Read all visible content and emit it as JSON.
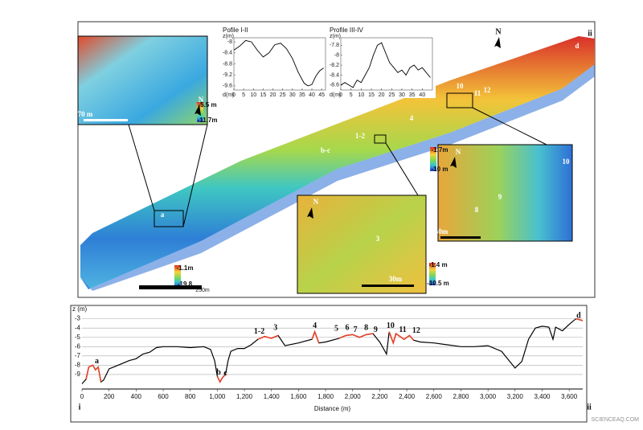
{
  "chart_data": [
    {
      "type": "line",
      "title": "Pofile I-II",
      "y_label": "z(m)",
      "x_label": "d(m)",
      "x": [
        0,
        3,
        6,
        9,
        12,
        15,
        18,
        21,
        24,
        27,
        30,
        33,
        36,
        38,
        40,
        42,
        44,
        46
      ],
      "series": [
        {
          "color": "#000000",
          "values": [
            -8.3,
            -8.15,
            -7.95,
            -8.0,
            -8.3,
            -8.55,
            -8.4,
            -8.1,
            -8.05,
            -8.25,
            -8.6,
            -9.1,
            -9.5,
            -9.6,
            -9.55,
            -9.25,
            -9.05,
            -8.95
          ]
        }
      ],
      "xlim": [
        0,
        47
      ],
      "xticks": [
        0,
        5,
        10,
        15,
        20,
        25,
        30,
        35,
        40,
        45
      ],
      "ylim": [
        -9.75,
        -7.85
      ],
      "yticks": [
        -8,
        -8.4,
        -8.8,
        -9.2,
        -9.6
      ]
    },
    {
      "type": "line",
      "title": "Profile III-IV",
      "y_label": "z(m)",
      "x_label": "d(m)",
      "x": [
        0,
        2,
        4,
        6,
        8,
        10,
        12,
        14,
        16,
        18,
        20,
        22,
        24,
        26,
        28,
        30,
        32,
        34,
        36,
        38,
        40,
        42,
        44
      ],
      "series": [
        {
          "color": "#000000",
          "values": [
            -8.6,
            -8.55,
            -8.6,
            -8.65,
            -8.5,
            -8.55,
            -8.4,
            -8.25,
            -8.0,
            -7.8,
            -7.75,
            -7.95,
            -8.15,
            -8.25,
            -8.35,
            -8.3,
            -8.4,
            -8.25,
            -8.2,
            -8.3,
            -8.25,
            -8.35,
            -8.45
          ]
        }
      ],
      "xlim": [
        0,
        45
      ],
      "xticks": [
        0,
        5,
        10,
        15,
        20,
        25,
        30,
        35,
        40
      ],
      "ylim": [
        -8.7,
        -7.65
      ],
      "yticks": [
        -7.8,
        -8,
        -8.2,
        -8.4,
        -8.6
      ]
    },
    {
      "type": "line",
      "y_label": "z (m)",
      "x_label": "Distance (m)",
      "start_label": "i",
      "end_label": "ii",
      "grid": true,
      "x": [
        0,
        30,
        50,
        80,
        100,
        120,
        140,
        160,
        200,
        250,
        300,
        350,
        400,
        450,
        500,
        550,
        600,
        700,
        800,
        900,
        950,
        980,
        1000,
        1020,
        1040,
        1060,
        1080,
        1100,
        1150,
        1200,
        1250,
        1300,
        1350,
        1400,
        1450,
        1500,
        1600,
        1700,
        1720,
        1750,
        1800,
        1900,
        1950,
        2000,
        2050,
        2100,
        2150,
        2200,
        2250,
        2270,
        2300,
        2320,
        2380,
        2420,
        2450,
        2500,
        2600,
        2700,
        2800,
        2900,
        3000,
        3100,
        3200,
        3250,
        3300,
        3350,
        3400,
        3450,
        3480,
        3500,
        3550,
        3600,
        3650,
        3700
      ],
      "series": [
        {
          "color": "#000000",
          "values": [
            -10,
            -9.5,
            -8.2,
            -8,
            -8.5,
            -8.2,
            -9.8,
            -9.6,
            -8.4,
            -8.1,
            -7.8,
            -7.5,
            -7.3,
            -6.8,
            -6.6,
            -6.1,
            -6,
            -6,
            -6.1,
            -6,
            -6.3,
            -7.5,
            -9.2,
            -9.8,
            -9.3,
            -9,
            -7.5,
            -6.5,
            -6.2,
            -6.2,
            -5.8,
            -5.2,
            -4.9,
            -5.1,
            -4.8,
            -5.9,
            -5.6,
            -5.2,
            -4.4,
            -5.6,
            -5.5,
            -5.1,
            -4.8,
            -4.7,
            -5,
            -4.7,
            -4.6,
            -5.5,
            -6.8,
            -4.4,
            -5.6,
            -4.6,
            -5.2,
            -4.8,
            -5.3,
            -5.5,
            -5.6,
            -5.8,
            -6,
            -6,
            -5.9,
            -6.5,
            -8.3,
            -7.6,
            -5.2,
            -4,
            -3.8,
            -3.9,
            -5.2,
            -3.9,
            -4.3,
            -3.6,
            -3,
            -3.2
          ]
        },
        {
          "color": "#e8432a",
          "values": [
            null,
            -9.5,
            -8.2,
            -8,
            -8.5,
            -8.2,
            -9.8,
            null,
            null,
            null,
            null,
            null,
            null,
            null,
            null,
            null,
            null,
            null,
            null,
            null,
            null,
            null,
            -9.2,
            -9.8,
            -9.3,
            -9,
            null,
            null,
            null,
            null,
            null,
            -5.2,
            -4.9,
            -5.1,
            -4.8,
            null,
            null,
            -5.2,
            -4.4,
            -5.6,
            null,
            -5.1,
            -4.8,
            -4.7,
            -5,
            -4.7,
            -4.6,
            null,
            null,
            -4.4,
            -5.6,
            -4.6,
            -5.2,
            -4.8,
            -5.3,
            null,
            null,
            null,
            null,
            null,
            null,
            null,
            null,
            null,
            null,
            null,
            null,
            null,
            null,
            null,
            null,
            null,
            -3,
            -3.2
          ]
        }
      ],
      "annotations": [
        {
          "text": "a",
          "x": 110,
          "y": -7.6
        },
        {
          "text": "b",
          "x": 1010,
          "y": -8.8
        },
        {
          "text": "c",
          "x": 1060,
          "y": -8.9
        },
        {
          "text": "1-2",
          "x": 1310,
          "y": -4.4
        },
        {
          "text": "3",
          "x": 1430,
          "y": -4.0
        },
        {
          "text": "4",
          "x": 1720,
          "y": -3.8
        },
        {
          "text": "5",
          "x": 1880,
          "y": -4.1
        },
        {
          "text": "6",
          "x": 1960,
          "y": -4.0
        },
        {
          "text": "7",
          "x": 2020,
          "y": -4.2
        },
        {
          "text": "8",
          "x": 2100,
          "y": -4.0
        },
        {
          "text": "9",
          "x": 2170,
          "y": -4.2
        },
        {
          "text": "10",
          "x": 2280,
          "y": -3.8
        },
        {
          "text": "11",
          "x": 2370,
          "y": -4.2
        },
        {
          "text": "12",
          "x": 2470,
          "y": -4.3
        },
        {
          "text": "d",
          "x": 3670,
          "y": -2.7
        }
      ],
      "xlim": [
        0,
        3700
      ],
      "xticks": [
        0,
        200,
        400,
        600,
        800,
        {
          "value": 1000,
          "label": "1,000"
        },
        {
          "value": 1200,
          "label": "1,200"
        },
        {
          "value": 1400,
          "label": "1,400"
        },
        {
          "value": 1600,
          "label": "1,600"
        },
        {
          "value": 1800,
          "label": "1,800"
        },
        {
          "value": 2000,
          "label": "2,000"
        },
        {
          "value": 2200,
          "label": "2,200"
        },
        {
          "value": 2400,
          "label": "2,400"
        },
        {
          "value": 2600,
          "label": "2,600"
        },
        {
          "value": 2800,
          "label": "2,800"
        },
        {
          "value": 3000,
          "label": "3,000"
        },
        {
          "value": 3200,
          "label": "3,200"
        },
        {
          "value": 3400,
          "label": "3,400"
        },
        {
          "value": 3600,
          "label": "3,600"
        }
      ],
      "ylim": [
        -10.3,
        -2.6
      ],
      "yticks": [
        -3,
        -4,
        -5,
        -6,
        -7,
        -8,
        -9
      ]
    }
  ],
  "map": {
    "labels": [
      "ii",
      "N",
      "N",
      "N",
      "N",
      "-5.5 m",
      "-11.7m",
      "70 m",
      "-1.7m",
      "-10 m",
      "50m",
      "-1.1m",
      "-19.8",
      "250m",
      "-1.4 m",
      "-10.5 m",
      "30m",
      "a",
      "b-c",
      "1-2",
      "4",
      "10",
      "11",
      "12",
      "d",
      "8",
      "9",
      "10",
      "3"
    ]
  },
  "watermark": "SCIENCEAQ.COM"
}
